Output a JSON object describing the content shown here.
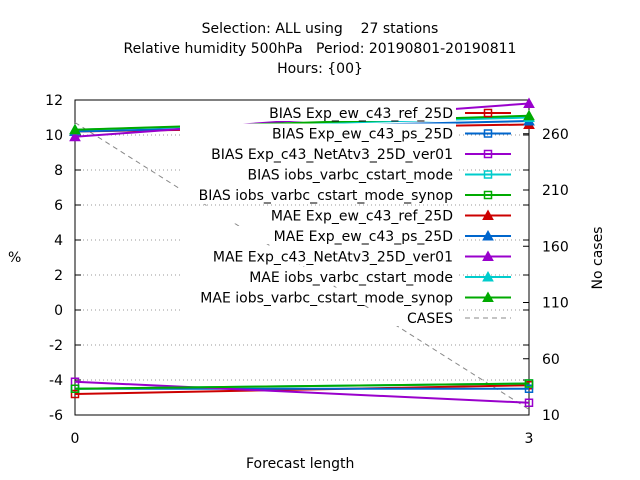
{
  "title_lines": [
    "Selection: ALL using    27 stations",
    "Relative humidity 500hPa   Period: 20190801-20190811",
    "Hours: {00}"
  ],
  "chart_data": {
    "type": "line",
    "xlabel": "Forecast length",
    "ylabel": "%",
    "y2label": "No cases",
    "x": [
      0,
      3
    ],
    "xlim": [
      0,
      3
    ],
    "xticks": [
      "0",
      "3"
    ],
    "ylim": [
      -6,
      12
    ],
    "yticks": [
      "-6",
      "-4",
      "-2",
      "0",
      "2",
      "4",
      "6",
      "8",
      "10",
      "12"
    ],
    "y2lim": [
      10,
      290
    ],
    "y2ticks": [
      "10",
      "60",
      "110",
      "160",
      "210",
      "260"
    ],
    "grid": true,
    "legend_position": "top-right",
    "series": [
      {
        "name": "BIAS Exp_ew_c43_ref_25D",
        "values": [
          -4.8,
          -4.3
        ],
        "color": "#cc0000",
        "marker": "square-open",
        "axis": "y1"
      },
      {
        "name": "BIAS Exp_ew_c43_ps_25D",
        "values": [
          -4.5,
          -4.5
        ],
        "color": "#0066cc",
        "marker": "square-open",
        "axis": "y1"
      },
      {
        "name": "BIAS Exp_c43_NetAtv3_25D_ver01",
        "values": [
          -4.1,
          -5.3
        ],
        "color": "#9900cc",
        "marker": "square-open",
        "axis": "y1"
      },
      {
        "name": "BIAS iobs_varbc_cstart_mode",
        "values": [
          -4.5,
          -4.2
        ],
        "color": "#00cccc",
        "marker": "square-open",
        "axis": "y1"
      },
      {
        "name": "BIAS iobs_varbc_cstart_mode_synop",
        "values": [
          -4.5,
          -4.2
        ],
        "color": "#00aa00",
        "marker": "square-open",
        "axis": "y1"
      },
      {
        "name": "MAE Exp_ew_c43_ref_25D",
        "values": [
          10.2,
          10.6
        ],
        "color": "#cc0000",
        "marker": "triangle-filled",
        "axis": "y1"
      },
      {
        "name": "MAE Exp_ew_c43_ps_25D",
        "values": [
          10.2,
          10.8
        ],
        "color": "#0066cc",
        "marker": "triangle-filled",
        "axis": "y1"
      },
      {
        "name": "MAE Exp_c43_NetAtv3_25D_ver01",
        "values": [
          9.9,
          11.8
        ],
        "color": "#9900cc",
        "marker": "triangle-filled",
        "axis": "y1"
      },
      {
        "name": "MAE iobs_varbc_cstart_mode",
        "values": [
          10.3,
          11.0
        ],
        "color": "#00cccc",
        "marker": "triangle-filled",
        "axis": "y1"
      },
      {
        "name": "MAE iobs_varbc_cstart_mode_synop",
        "values": [
          10.3,
          11.1
        ],
        "color": "#00aa00",
        "marker": "triangle-filled",
        "axis": "y1"
      },
      {
        "name": "CASES",
        "values": [
          270,
          15
        ],
        "color": "#888888",
        "marker": "none",
        "dash": true,
        "axis": "y2"
      }
    ]
  }
}
